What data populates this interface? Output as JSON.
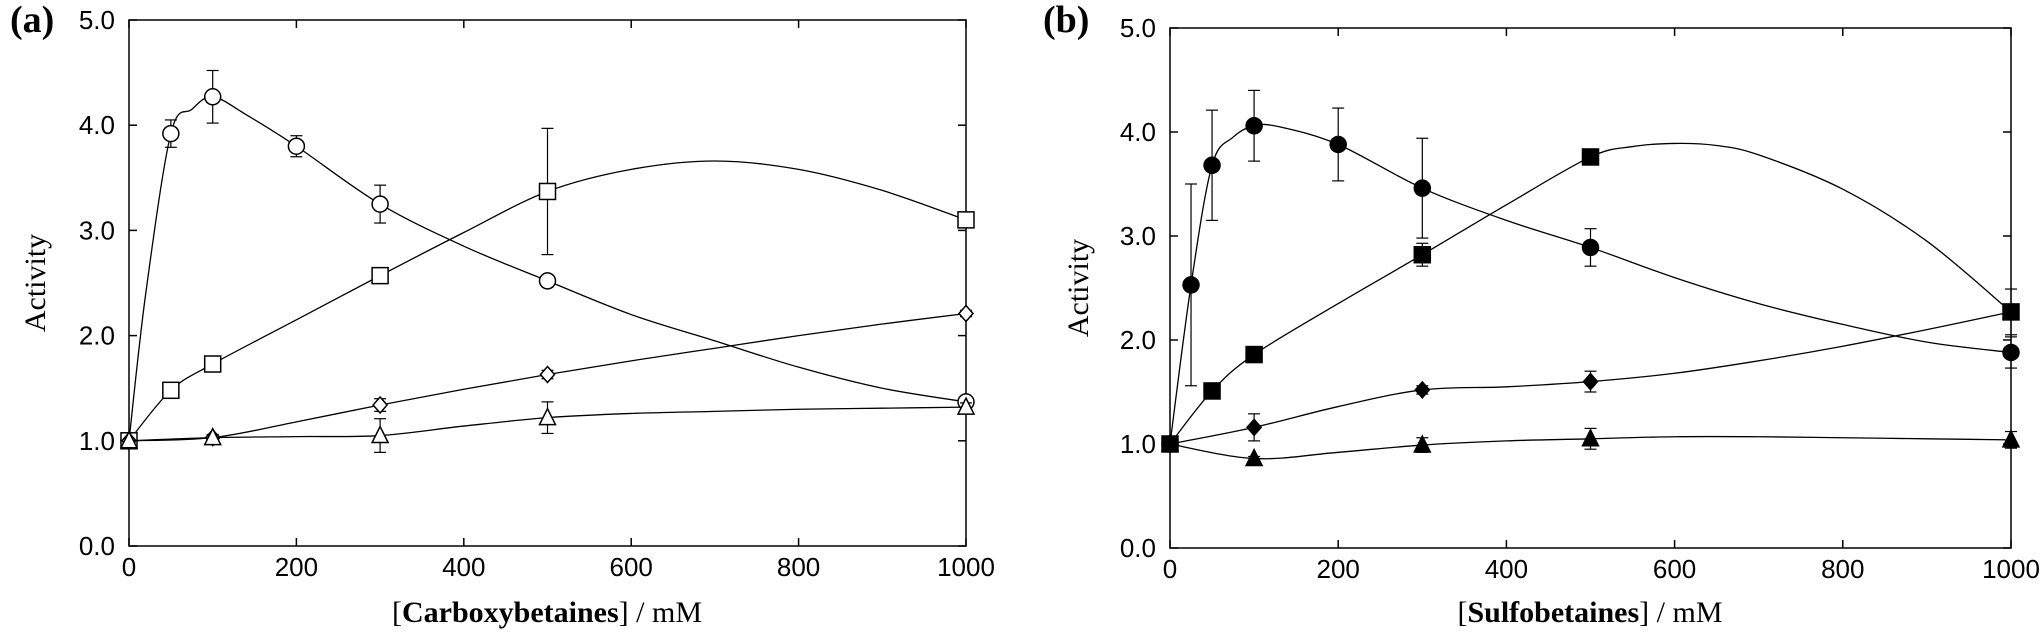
{
  "chart_data": [
    {
      "panel_label": "(a)",
      "type": "scatter",
      "xlabel": {
        "bracket_open": "[",
        "name": "Carboxybetaines",
        "suffix": "] / mM"
      },
      "ylabel": "Activity",
      "xlim": [
        0,
        1000
      ],
      "ylim": [
        0,
        5.0
      ],
      "xticks": [
        "0",
        "200",
        "400",
        "600",
        "800",
        "1000"
      ],
      "yticks": [
        "0.0",
        "1.0",
        "2.0",
        "3.0",
        "4.0",
        "5.0"
      ],
      "grid": false,
      "series": [
        {
          "marker": "circle-open",
          "x": [
            0,
            50,
            100,
            200,
            300,
            500,
            1000
          ],
          "y": [
            1.0,
            3.92,
            4.27,
            3.8,
            3.25,
            2.52,
            1.37
          ],
          "err": [
            0,
            0.13,
            0.25,
            0.1,
            0.18,
            0.04,
            0.04
          ],
          "curve": [
            [
              0,
              1.0
            ],
            [
              20,
              2.4
            ],
            [
              50,
              3.92
            ],
            [
              75,
              4.15
            ],
            [
              100,
              4.27
            ],
            [
              140,
              4.1
            ],
            [
              200,
              3.8
            ],
            [
              300,
              3.25
            ],
            [
              400,
              2.85
            ],
            [
              500,
              2.52
            ],
            [
              600,
              2.2
            ],
            [
              700,
              1.95
            ],
            [
              800,
              1.7
            ],
            [
              900,
              1.5
            ],
            [
              1000,
              1.37
            ]
          ]
        },
        {
          "marker": "square-open",
          "x": [
            0,
            50,
            100,
            300,
            500,
            1000
          ],
          "y": [
            1.0,
            1.48,
            1.73,
            2.57,
            3.37,
            3.1
          ],
          "err": [
            0,
            0.04,
            0.05,
            0.07,
            0.6,
            0.04
          ],
          "curve": [
            [
              0,
              1.0
            ],
            [
              50,
              1.48
            ],
            [
              100,
              1.73
            ],
            [
              200,
              2.15
            ],
            [
              300,
              2.57
            ],
            [
              400,
              2.98
            ],
            [
              500,
              3.37
            ],
            [
              600,
              3.58
            ],
            [
              700,
              3.66
            ],
            [
              800,
              3.58
            ],
            [
              900,
              3.38
            ],
            [
              1000,
              3.1
            ]
          ]
        },
        {
          "marker": "diamond-open",
          "x": [
            0,
            100,
            300,
            500,
            1000
          ],
          "y": [
            1.0,
            1.03,
            1.34,
            1.63,
            2.21
          ],
          "err": [
            0,
            0.03,
            0.06,
            0.04,
            0.03
          ],
          "curve": [
            [
              0,
              1.0
            ],
            [
              100,
              1.03
            ],
            [
              200,
              1.18
            ],
            [
              300,
              1.34
            ],
            [
              400,
              1.49
            ],
            [
              500,
              1.63
            ],
            [
              600,
              1.76
            ],
            [
              700,
              1.88
            ],
            [
              800,
              2.0
            ],
            [
              900,
              2.11
            ],
            [
              1000,
              2.21
            ]
          ]
        },
        {
          "marker": "triangle-open",
          "x": [
            0,
            100,
            300,
            500,
            1000
          ],
          "y": [
            1.0,
            1.03,
            1.05,
            1.22,
            1.32
          ],
          "err": [
            0,
            0.02,
            0.16,
            0.15,
            0.04
          ],
          "curve": [
            [
              0,
              1.0
            ],
            [
              100,
              1.03
            ],
            [
              200,
              1.04
            ],
            [
              300,
              1.05
            ],
            [
              400,
              1.14
            ],
            [
              500,
              1.22
            ],
            [
              600,
              1.26
            ],
            [
              700,
              1.28
            ],
            [
              800,
              1.3
            ],
            [
              900,
              1.31
            ],
            [
              1000,
              1.32
            ]
          ]
        }
      ]
    },
    {
      "panel_label": "(b)",
      "type": "scatter",
      "xlabel": {
        "bracket_open": "[",
        "name": "Sulfobetaines",
        "suffix": "] / mM"
      },
      "ylabel": "Activity",
      "xlim": [
        0,
        1000
      ],
      "ylim": [
        0,
        5.0
      ],
      "xticks": [
        "0",
        "200",
        "400",
        "600",
        "800",
        "1000"
      ],
      "yticks": [
        "0.0",
        "1.0",
        "2.0",
        "3.0",
        "4.0",
        "5.0"
      ],
      "grid": false,
      "series": [
        {
          "marker": "circle-filled",
          "x": [
            0,
            25,
            50,
            100,
            200,
            300,
            500,
            1000
          ],
          "y": [
            1.0,
            2.53,
            3.68,
            4.06,
            3.88,
            3.46,
            2.89,
            1.88
          ],
          "err": [
            0,
            0.97,
            0.53,
            0.34,
            0.35,
            0.48,
            0.18,
            0.15
          ],
          "curve": [
            [
              0,
              1.0
            ],
            [
              25,
              2.53
            ],
            [
              50,
              3.68
            ],
            [
              75,
              3.95
            ],
            [
              100,
              4.06
            ],
            [
              130,
              4.05
            ],
            [
              200,
              3.88
            ],
            [
              300,
              3.46
            ],
            [
              400,
              3.15
            ],
            [
              500,
              2.89
            ],
            [
              600,
              2.6
            ],
            [
              700,
              2.35
            ],
            [
              800,
              2.15
            ],
            [
              900,
              1.98
            ],
            [
              1000,
              1.88
            ]
          ]
        },
        {
          "marker": "square-filled",
          "x": [
            0,
            50,
            100,
            300,
            500,
            1000
          ],
          "y": [
            1.0,
            1.51,
            1.86,
            2.82,
            3.76,
            2.27
          ],
          "err": [
            0,
            0.04,
            0.04,
            0.11,
            0.05,
            0.22
          ],
          "curve": [
            [
              0,
              1.0
            ],
            [
              50,
              1.51
            ],
            [
              100,
              1.86
            ],
            [
              200,
              2.35
            ],
            [
              300,
              2.82
            ],
            [
              400,
              3.3
            ],
            [
              500,
              3.76
            ],
            [
              550,
              3.86
            ],
            [
              600,
              3.89
            ],
            [
              650,
              3.87
            ],
            [
              700,
              3.78
            ],
            [
              800,
              3.45
            ],
            [
              900,
              2.95
            ],
            [
              1000,
              2.27
            ]
          ]
        },
        {
          "marker": "diamond-filled",
          "x": [
            0,
            100,
            300,
            500,
            1000
          ],
          "y": [
            1.0,
            1.16,
            1.52,
            1.6,
            2.27
          ],
          "err": [
            0,
            0.13,
            0.04,
            0.1,
            0.05
          ],
          "curve": [
            [
              0,
              1.0
            ],
            [
              100,
              1.16
            ],
            [
              200,
              1.36
            ],
            [
              300,
              1.52
            ],
            [
              400,
              1.55
            ],
            [
              500,
              1.6
            ],
            [
              600,
              1.68
            ],
            [
              700,
              1.8
            ],
            [
              800,
              1.94
            ],
            [
              900,
              2.1
            ],
            [
              1000,
              2.27
            ]
          ]
        },
        {
          "marker": "triangle-filled",
          "x": [
            0,
            100,
            300,
            500,
            1000
          ],
          "y": [
            1.0,
            0.86,
            0.99,
            1.05,
            1.04
          ],
          "err": [
            0,
            0.02,
            0.07,
            0.1,
            0.08
          ],
          "curve": [
            [
              0,
              1.0
            ],
            [
              100,
              0.86
            ],
            [
              200,
              0.92
            ],
            [
              300,
              0.99
            ],
            [
              400,
              1.03
            ],
            [
              500,
              1.05
            ],
            [
              600,
              1.07
            ],
            [
              700,
              1.07
            ],
            [
              800,
              1.06
            ],
            [
              900,
              1.05
            ],
            [
              1000,
              1.04
            ]
          ]
        }
      ]
    }
  ]
}
